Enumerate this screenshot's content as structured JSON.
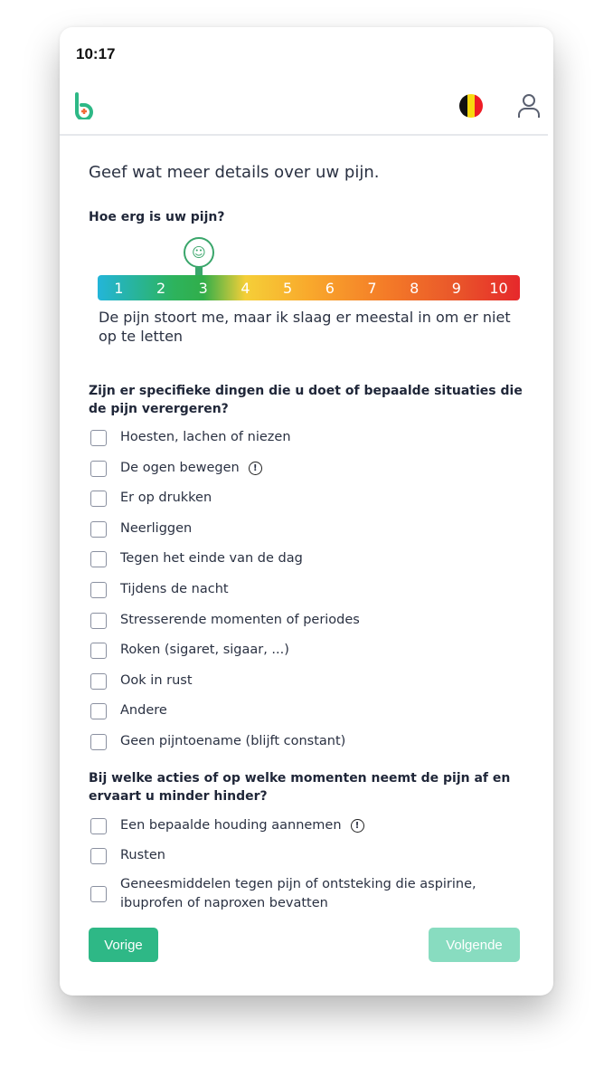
{
  "status_bar": {
    "time": "10:17"
  },
  "header": {
    "logo": "b",
    "flag": "belgium",
    "colors": {
      "brand": "#2eb886",
      "accent": "#f26b38"
    }
  },
  "page": {
    "title": "Geef wat meer details over uw pijn."
  },
  "pain": {
    "question": "Hoe erg is uw pijn?",
    "scale": [
      "1",
      "2",
      "3",
      "4",
      "5",
      "6",
      "7",
      "8",
      "9",
      "10"
    ],
    "selected": 3,
    "description": "De pijn stoort me, maar ik slaag er meestal in om er niet op te letten"
  },
  "worse": {
    "question": "Zijn er specifieke dingen die u doet of bepaalde situaties die de pijn verergeren?",
    "items": [
      {
        "label": "Hoesten, lachen of niezen"
      },
      {
        "label": "De ogen bewegen",
        "info": "!"
      },
      {
        "label": "Er op drukken"
      },
      {
        "label": "Neerliggen"
      },
      {
        "label": "Tegen het einde van de dag"
      },
      {
        "label": "Tijdens de nacht"
      },
      {
        "label": "Stresserende momenten of periodes"
      },
      {
        "label": "Roken (sigaret, sigaar, ...)"
      },
      {
        "label": "Ook in rust"
      },
      {
        "label": "Andere"
      },
      {
        "label": "Geen pijntoename (blijft constant)"
      }
    ]
  },
  "better": {
    "question": "Bij welke acties of op welke momenten neemt de pijn af en ervaart u minder hinder?",
    "items": [
      {
        "label": "Een bepaalde houding aannemen",
        "info": "!"
      },
      {
        "label": "Rusten"
      },
      {
        "label": "Geneesmiddelen tegen pijn of ontsteking die aspirine, ibuprofen of naproxen bevatten"
      }
    ]
  },
  "buttons": {
    "prev": "Vorige",
    "next": "Volgende"
  }
}
